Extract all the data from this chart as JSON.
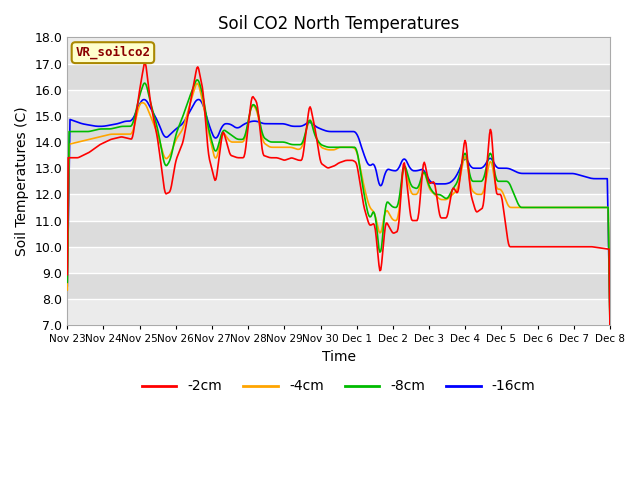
{
  "title": "Soil CO2 North Temperatures",
  "xlabel": "Time",
  "ylabel": "Soil Temperatures (C)",
  "ylim": [
    7.0,
    18.0
  ],
  "yticks": [
    7.0,
    8.0,
    9.0,
    10.0,
    11.0,
    12.0,
    13.0,
    14.0,
    15.0,
    16.0,
    17.0,
    18.0
  ],
  "xtick_labels": [
    "Nov 23",
    "Nov 24",
    "Nov 25",
    "Nov 26",
    "Nov 27",
    "Nov 28",
    "Nov 29",
    "Nov 30",
    "Dec 1",
    "Dec 2",
    "Dec 3",
    "Dec 4",
    "Dec 5",
    "Dec 6",
    "Dec 7",
    "Dec 8"
  ],
  "colors": {
    "-2cm": "#ff0000",
    "-4cm": "#ffa500",
    "-8cm": "#00bb00",
    "-16cm": "#0000ff"
  },
  "legend_label": "VR_soilco2",
  "fig_bg": "#ffffff",
  "plot_bg_dark": "#dcdcdc",
  "plot_bg_light": "#ebebeb",
  "grid_color": "#ffffff",
  "n_points": 600,
  "red_waypoints": [
    [
      0,
      13.4
    ],
    [
      0.3,
      13.4
    ],
    [
      0.6,
      13.6
    ],
    [
      0.9,
      13.9
    ],
    [
      1.2,
      14.1
    ],
    [
      1.5,
      14.2
    ],
    [
      1.8,
      14.1
    ],
    [
      2.0,
      16.0
    ],
    [
      2.15,
      17.2
    ],
    [
      2.3,
      15.5
    ],
    [
      2.5,
      14.1
    ],
    [
      2.7,
      12.0
    ],
    [
      2.85,
      12.1
    ],
    [
      3.0,
      13.3
    ],
    [
      3.2,
      14.0
    ],
    [
      3.4,
      15.5
    ],
    [
      3.6,
      17.0
    ],
    [
      3.75,
      16.0
    ],
    [
      3.9,
      13.5
    ],
    [
      4.1,
      12.4
    ],
    [
      4.3,
      14.5
    ],
    [
      4.5,
      13.5
    ],
    [
      4.7,
      13.4
    ],
    [
      4.9,
      13.4
    ],
    [
      5.1,
      15.8
    ],
    [
      5.25,
      15.5
    ],
    [
      5.4,
      13.5
    ],
    [
      5.6,
      13.4
    ],
    [
      5.8,
      13.4
    ],
    [
      6.0,
      13.3
    ],
    [
      6.2,
      13.4
    ],
    [
      6.4,
      13.3
    ],
    [
      6.5,
      13.3
    ],
    [
      6.7,
      15.5
    ],
    [
      6.85,
      14.5
    ],
    [
      7.0,
      13.2
    ],
    [
      7.2,
      13.0
    ],
    [
      7.4,
      13.1
    ],
    [
      7.5,
      13.2
    ],
    [
      7.7,
      13.3
    ],
    [
      7.9,
      13.3
    ],
    [
      8.0,
      13.2
    ],
    [
      8.2,
      11.5
    ],
    [
      8.35,
      10.8
    ],
    [
      8.5,
      10.9
    ],
    [
      8.65,
      8.8
    ],
    [
      8.8,
      11.0
    ],
    [
      9.0,
      10.5
    ],
    [
      9.15,
      10.6
    ],
    [
      9.3,
      13.5
    ],
    [
      9.5,
      11.0
    ],
    [
      9.7,
      11.0
    ],
    [
      9.85,
      13.4
    ],
    [
      10.0,
      12.4
    ],
    [
      10.15,
      12.5
    ],
    [
      10.3,
      11.1
    ],
    [
      10.5,
      11.1
    ],
    [
      10.65,
      12.3
    ],
    [
      10.8,
      12.0
    ],
    [
      11.0,
      14.3
    ],
    [
      11.15,
      12.0
    ],
    [
      11.3,
      11.3
    ],
    [
      11.5,
      11.5
    ],
    [
      11.7,
      14.8
    ],
    [
      11.85,
      12.0
    ],
    [
      12.0,
      12.0
    ],
    [
      12.2,
      10.0
    ],
    [
      12.5,
      10.0
    ],
    [
      13.0,
      10.0
    ],
    [
      13.5,
      10.0
    ],
    [
      14.0,
      10.0
    ],
    [
      14.5,
      10.0
    ],
    [
      15.0,
      9.9
    ]
  ],
  "orange_waypoints": [
    [
      0,
      13.9
    ],
    [
      0.3,
      14.0
    ],
    [
      0.6,
      14.1
    ],
    [
      0.9,
      14.2
    ],
    [
      1.2,
      14.3
    ],
    [
      1.5,
      14.3
    ],
    [
      1.8,
      14.3
    ],
    [
      2.0,
      15.5
    ],
    [
      2.15,
      15.5
    ],
    [
      2.3,
      15.0
    ],
    [
      2.5,
      14.3
    ],
    [
      2.7,
      13.3
    ],
    [
      2.85,
      13.5
    ],
    [
      3.0,
      14.1
    ],
    [
      3.2,
      14.5
    ],
    [
      3.4,
      15.5
    ],
    [
      3.6,
      16.4
    ],
    [
      3.75,
      15.5
    ],
    [
      3.9,
      14.4
    ],
    [
      4.1,
      13.2
    ],
    [
      4.3,
      14.4
    ],
    [
      4.5,
      14.0
    ],
    [
      4.7,
      14.0
    ],
    [
      4.9,
      14.0
    ],
    [
      5.1,
      15.5
    ],
    [
      5.25,
      15.2
    ],
    [
      5.4,
      14.0
    ],
    [
      5.6,
      13.8
    ],
    [
      5.8,
      13.8
    ],
    [
      6.0,
      13.8
    ],
    [
      6.2,
      13.8
    ],
    [
      6.4,
      13.7
    ],
    [
      6.5,
      13.8
    ],
    [
      6.7,
      15.0
    ],
    [
      6.85,
      14.3
    ],
    [
      7.0,
      13.8
    ],
    [
      7.2,
      13.7
    ],
    [
      7.4,
      13.7
    ],
    [
      7.5,
      13.8
    ],
    [
      7.7,
      13.8
    ],
    [
      7.9,
      13.8
    ],
    [
      8.0,
      13.7
    ],
    [
      8.2,
      12.3
    ],
    [
      8.35,
      11.5
    ],
    [
      8.5,
      11.3
    ],
    [
      8.65,
      10.3
    ],
    [
      8.8,
      11.5
    ],
    [
      9.0,
      11.0
    ],
    [
      9.15,
      11.0
    ],
    [
      9.3,
      13.3
    ],
    [
      9.5,
      12.0
    ],
    [
      9.7,
      12.0
    ],
    [
      9.85,
      13.0
    ],
    [
      10.0,
      12.2
    ],
    [
      10.15,
      12.0
    ],
    [
      10.3,
      11.8
    ],
    [
      10.5,
      11.8
    ],
    [
      10.65,
      12.0
    ],
    [
      10.8,
      12.2
    ],
    [
      11.0,
      13.7
    ],
    [
      11.15,
      12.2
    ],
    [
      11.3,
      12.0
    ],
    [
      11.5,
      12.0
    ],
    [
      11.7,
      13.5
    ],
    [
      11.85,
      12.2
    ],
    [
      12.0,
      12.2
    ],
    [
      12.2,
      11.5
    ],
    [
      12.5,
      11.5
    ],
    [
      13.0,
      11.5
    ],
    [
      13.5,
      11.5
    ],
    [
      14.0,
      11.5
    ],
    [
      14.5,
      11.5
    ],
    [
      15.0,
      11.5
    ]
  ],
  "green_waypoints": [
    [
      0,
      14.4
    ],
    [
      0.3,
      14.4
    ],
    [
      0.6,
      14.4
    ],
    [
      0.9,
      14.5
    ],
    [
      1.2,
      14.5
    ],
    [
      1.5,
      14.6
    ],
    [
      1.8,
      14.6
    ],
    [
      2.0,
      15.8
    ],
    [
      2.15,
      16.4
    ],
    [
      2.3,
      15.5
    ],
    [
      2.5,
      14.5
    ],
    [
      2.7,
      13.0
    ],
    [
      2.85,
      13.3
    ],
    [
      3.0,
      14.3
    ],
    [
      3.2,
      15.0
    ],
    [
      3.4,
      15.8
    ],
    [
      3.6,
      16.5
    ],
    [
      3.75,
      15.8
    ],
    [
      3.9,
      14.5
    ],
    [
      4.1,
      13.5
    ],
    [
      4.3,
      14.5
    ],
    [
      4.5,
      14.3
    ],
    [
      4.7,
      14.1
    ],
    [
      4.9,
      14.1
    ],
    [
      5.1,
      15.5
    ],
    [
      5.25,
      15.3
    ],
    [
      5.4,
      14.2
    ],
    [
      5.6,
      14.0
    ],
    [
      5.8,
      14.0
    ],
    [
      6.0,
      14.0
    ],
    [
      6.2,
      13.9
    ],
    [
      6.4,
      13.9
    ],
    [
      6.5,
      13.9
    ],
    [
      6.7,
      15.0
    ],
    [
      6.85,
      14.2
    ],
    [
      7.0,
      13.9
    ],
    [
      7.2,
      13.8
    ],
    [
      7.4,
      13.8
    ],
    [
      7.5,
      13.8
    ],
    [
      7.7,
      13.8
    ],
    [
      7.9,
      13.8
    ],
    [
      8.0,
      13.8
    ],
    [
      8.2,
      12.0
    ],
    [
      8.35,
      11.0
    ],
    [
      8.5,
      11.5
    ],
    [
      8.65,
      9.3
    ],
    [
      8.8,
      11.8
    ],
    [
      9.0,
      11.5
    ],
    [
      9.15,
      11.5
    ],
    [
      9.3,
      13.3
    ],
    [
      9.5,
      12.3
    ],
    [
      9.7,
      12.2
    ],
    [
      9.85,
      13.0
    ],
    [
      10.0,
      12.3
    ],
    [
      10.15,
      12.0
    ],
    [
      10.3,
      12.0
    ],
    [
      10.5,
      11.8
    ],
    [
      10.65,
      12.2
    ],
    [
      10.8,
      12.5
    ],
    [
      11.0,
      13.8
    ],
    [
      11.15,
      12.5
    ],
    [
      11.3,
      12.5
    ],
    [
      11.5,
      12.5
    ],
    [
      11.7,
      13.8
    ],
    [
      11.85,
      12.5
    ],
    [
      12.0,
      12.5
    ],
    [
      12.2,
      12.5
    ],
    [
      12.5,
      11.5
    ],
    [
      13.0,
      11.5
    ],
    [
      13.5,
      11.5
    ],
    [
      14.0,
      11.5
    ],
    [
      14.5,
      11.5
    ],
    [
      15.0,
      11.5
    ]
  ],
  "blue_waypoints": [
    [
      0,
      14.9
    ],
    [
      0.2,
      14.8
    ],
    [
      0.4,
      14.7
    ],
    [
      0.6,
      14.65
    ],
    [
      0.8,
      14.6
    ],
    [
      1.0,
      14.6
    ],
    [
      1.2,
      14.65
    ],
    [
      1.4,
      14.7
    ],
    [
      1.6,
      14.8
    ],
    [
      1.8,
      14.8
    ],
    [
      2.0,
      15.5
    ],
    [
      2.15,
      15.7
    ],
    [
      2.3,
      15.3
    ],
    [
      2.5,
      14.8
    ],
    [
      2.7,
      14.1
    ],
    [
      2.85,
      14.3
    ],
    [
      3.0,
      14.5
    ],
    [
      3.2,
      14.7
    ],
    [
      3.4,
      15.2
    ],
    [
      3.6,
      15.7
    ],
    [
      3.75,
      15.5
    ],
    [
      3.9,
      14.7
    ],
    [
      4.1,
      14.0
    ],
    [
      4.3,
      14.7
    ],
    [
      4.5,
      14.7
    ],
    [
      4.7,
      14.5
    ],
    [
      4.9,
      14.7
    ],
    [
      5.1,
      14.8
    ],
    [
      5.25,
      14.8
    ],
    [
      5.4,
      14.7
    ],
    [
      5.6,
      14.7
    ],
    [
      5.8,
      14.7
    ],
    [
      6.0,
      14.7
    ],
    [
      6.2,
      14.6
    ],
    [
      6.4,
      14.6
    ],
    [
      6.5,
      14.6
    ],
    [
      6.7,
      14.8
    ],
    [
      6.85,
      14.6
    ],
    [
      7.0,
      14.5
    ],
    [
      7.2,
      14.4
    ],
    [
      7.4,
      14.4
    ],
    [
      7.5,
      14.4
    ],
    [
      7.7,
      14.4
    ],
    [
      7.9,
      14.4
    ],
    [
      8.0,
      14.4
    ],
    [
      8.2,
      13.5
    ],
    [
      8.35,
      13.0
    ],
    [
      8.5,
      13.3
    ],
    [
      8.65,
      12.0
    ],
    [
      8.8,
      13.0
    ],
    [
      9.0,
      12.9
    ],
    [
      9.15,
      12.9
    ],
    [
      9.3,
      13.5
    ],
    [
      9.5,
      12.9
    ],
    [
      9.7,
      12.9
    ],
    [
      9.85,
      13.0
    ],
    [
      10.0,
      12.5
    ],
    [
      10.15,
      12.4
    ],
    [
      10.3,
      12.4
    ],
    [
      10.5,
      12.4
    ],
    [
      10.65,
      12.5
    ],
    [
      10.8,
      12.8
    ],
    [
      11.0,
      13.5
    ],
    [
      11.15,
      13.0
    ],
    [
      11.3,
      13.0
    ],
    [
      11.5,
      13.0
    ],
    [
      11.7,
      13.5
    ],
    [
      11.85,
      13.0
    ],
    [
      12.0,
      13.0
    ],
    [
      12.2,
      13.0
    ],
    [
      12.5,
      12.8
    ],
    [
      13.0,
      12.8
    ],
    [
      13.5,
      12.8
    ],
    [
      14.0,
      12.8
    ],
    [
      14.5,
      12.6
    ],
    [
      15.0,
      12.6
    ]
  ]
}
